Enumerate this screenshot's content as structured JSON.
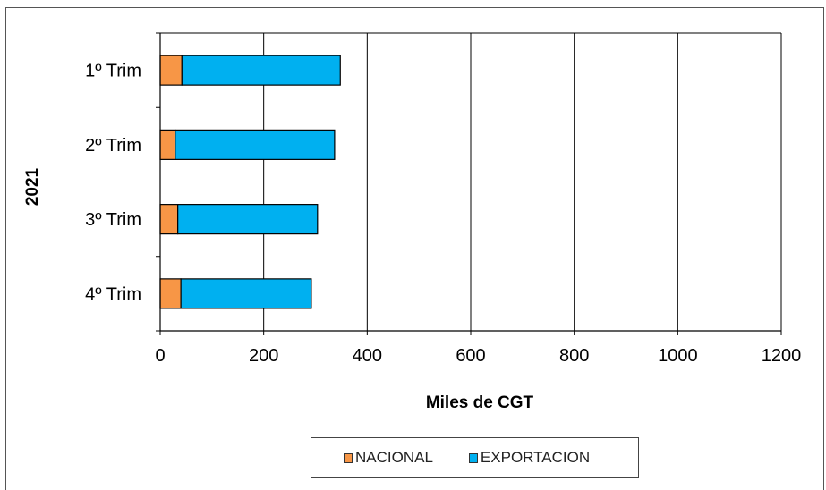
{
  "chart_data": {
    "type": "bar",
    "orientation": "horizontal",
    "stacked": true,
    "categories": [
      "1º Trim",
      "2º Trim",
      "3º Trim",
      "4º Trim"
    ],
    "group_label": "2021",
    "series": [
      {
        "name": "NACIONAL",
        "values": [
          42,
          29,
          34,
          40
        ],
        "color": "#F79646"
      },
      {
        "name": "EXPORTACION",
        "values": [
          306,
          308,
          270,
          252
        ],
        "color": "#00B0F0"
      }
    ],
    "xlabel": "Miles de CGT",
    "xlim": [
      0,
      1200
    ],
    "xticks": [
      "0",
      "200",
      "400",
      "600",
      "800",
      "1000",
      "1200"
    ],
    "grid": "vertical",
    "legend_position": "bottom"
  }
}
